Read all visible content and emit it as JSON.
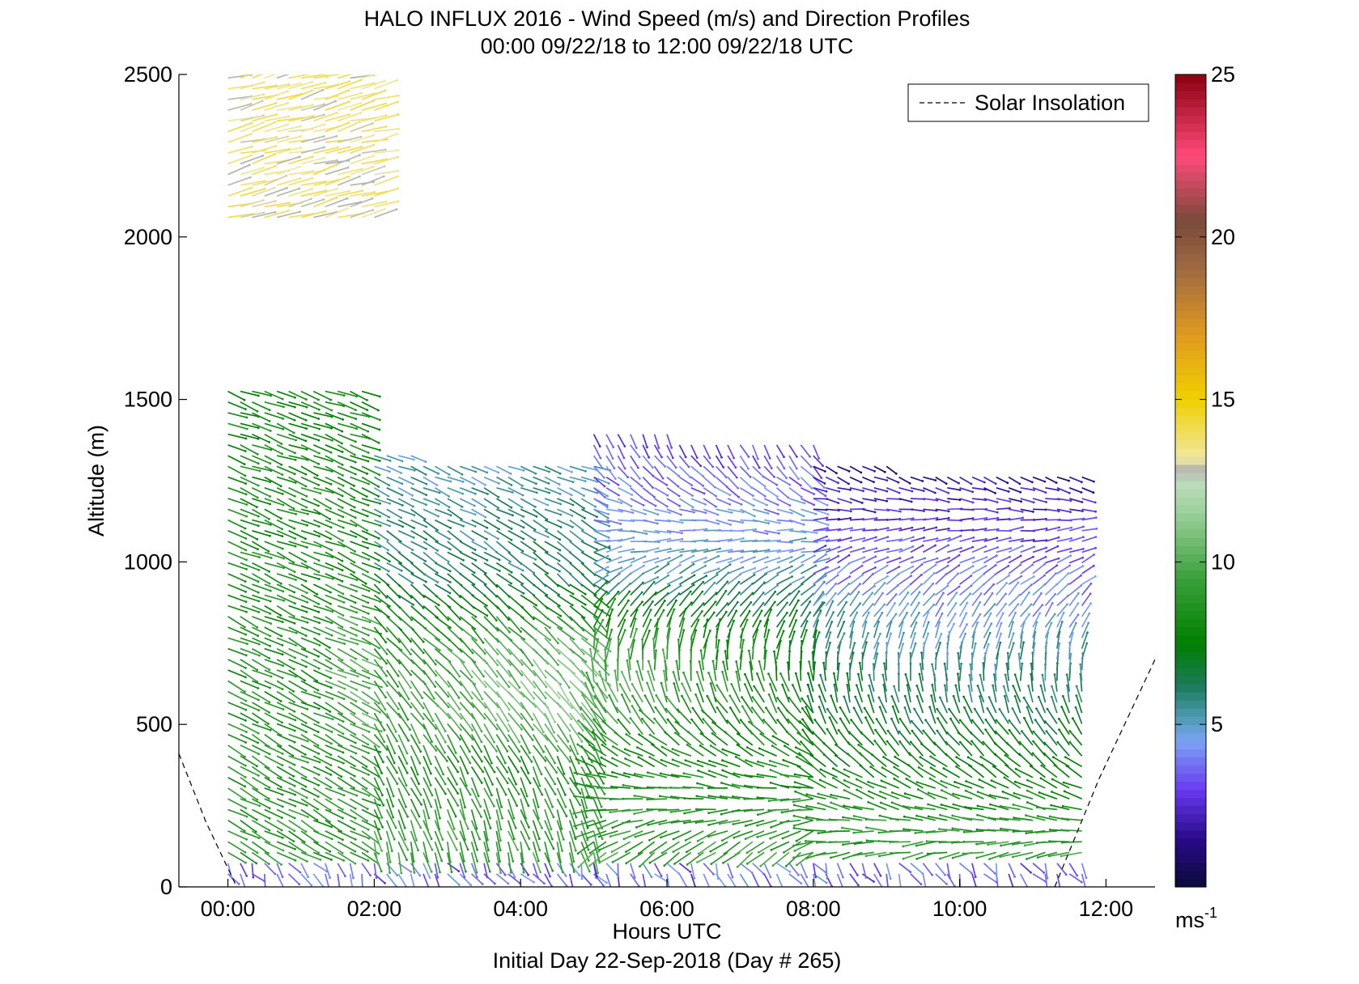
{
  "chart_data": {
    "type": "wind-barb-profile",
    "title": "HALO INFLUX 2016 - Wind Speed (m/s) and Direction Profiles",
    "subtitle": "00:00 09/22/18 to 12:00 09/22/18  UTC",
    "xlabel": "Hours UTC",
    "xlabel2": "Initial Day 22-Sep-2018 (Day # 265)",
    "ylabel": "Altitude (m)",
    "xlim": [
      -0.67,
      12.67
    ],
    "ylim": [
      0,
      2500
    ],
    "x_ticks": [
      0,
      2,
      4,
      6,
      8,
      10,
      12
    ],
    "x_tick_labels": [
      "00:00",
      "02:00",
      "04:00",
      "06:00",
      "08:00",
      "10:00",
      "12:00"
    ],
    "y_ticks": [
      0,
      500,
      1000,
      1500,
      2000,
      2500
    ],
    "y_tick_labels": [
      "0",
      "500",
      "1000",
      "1500",
      "2000",
      "2500"
    ],
    "legend": {
      "label": "Solar Insolation",
      "style": "dashed",
      "color": "#000000",
      "placement": "top-right"
    },
    "colorbar": {
      "range": [
        0,
        25
      ],
      "ticks": [
        5,
        10,
        15,
        20,
        25
      ],
      "tick_labels": [
        "5",
        "10",
        "15",
        "20",
        "25"
      ],
      "unit_base": "ms",
      "unit_exp": "-1",
      "stops": [
        {
          "v": 0,
          "c": "#0a0a3a"
        },
        {
          "v": 1.5,
          "c": "#2a0a8a"
        },
        {
          "v": 3,
          "c": "#6a3af0"
        },
        {
          "v": 4.5,
          "c": "#7aa4f4"
        },
        {
          "v": 5.3,
          "c": "#4a9aaa"
        },
        {
          "v": 6.2,
          "c": "#1a7a5a"
        },
        {
          "v": 7.5,
          "c": "#008000"
        },
        {
          "v": 9.5,
          "c": "#3aa03a"
        },
        {
          "v": 11.5,
          "c": "#9ad09a"
        },
        {
          "v": 12.5,
          "c": "#c0dcc0"
        },
        {
          "v": 12.8,
          "c": "#b0b0b0"
        },
        {
          "v": 13.2,
          "c": "#f0e8a0"
        },
        {
          "v": 15,
          "c": "#f0d000"
        },
        {
          "v": 17,
          "c": "#e09a20"
        },
        {
          "v": 19,
          "c": "#a06a40"
        },
        {
          "v": 20.5,
          "c": "#7a4a3a"
        },
        {
          "v": 22.5,
          "c": "#ff4a7a"
        },
        {
          "v": 25,
          "c": "#8a0010"
        }
      ]
    },
    "solar_insolation": {
      "morning": [
        [
          -0.67,
          410
        ],
        [
          -0.3,
          200
        ],
        [
          0.12,
          0
        ]
      ],
      "evening": [
        [
          11.3,
          0
        ],
        [
          11.9,
          330
        ],
        [
          12.67,
          700
        ]
      ]
    },
    "profile_times": [
      0,
      0.17,
      0.33,
      0.5,
      0.67,
      0.83,
      1.0,
      1.17,
      1.33,
      1.5,
      1.67,
      1.83,
      2.0,
      2.17,
      2.33,
      2.5,
      2.67,
      2.83,
      3.0,
      3.17,
      3.33,
      3.5,
      3.67,
      3.83,
      4.0,
      4.17,
      4.33,
      4.5,
      4.67,
      4.83,
      5.0,
      5.17,
      5.33,
      5.5,
      5.67,
      5.83,
      6.0,
      6.17,
      6.33,
      6.5,
      6.67,
      6.83,
      7.0,
      7.17,
      7.33,
      7.5,
      7.67,
      7.83,
      8.0,
      8.17,
      8.33,
      8.5,
      8.67,
      8.83,
      9.0,
      9.17,
      9.33,
      9.5,
      9.67,
      9.83,
      10.0,
      10.17,
      10.33,
      10.5,
      10.67,
      10.83,
      11.0,
      11.17,
      11.33,
      11.5,
      11.67
    ],
    "segments": [
      {
        "t0": 0,
        "t1": 1.9,
        "z0": 0,
        "z1": 1550,
        "spd_low": 9,
        "spd_high": 8,
        "dir_low": 300,
        "dir_high": 290
      },
      {
        "t0": 2.0,
        "t1": 5.0,
        "z0": 0,
        "z1": 1330,
        "spd_low": 10,
        "spd_high": 5,
        "dir_low": 350,
        "dir_high": 290
      },
      {
        "t0": 5.0,
        "t1": 8.0,
        "z0": 0,
        "z1": 1400,
        "spd_low": 10,
        "spd_high": 3,
        "dir_low": 30,
        "dir_high": 340
      },
      {
        "t0": 8.0,
        "t1": 11.8,
        "z0": 0,
        "z1": 1300,
        "spd_low": 10,
        "spd_high": 1.5,
        "dir_low": 60,
        "dir_high": 300
      },
      {
        "t0": 0,
        "t1": 2.0,
        "z0": 2060,
        "z1": 2500,
        "spd_low": 13.5,
        "spd_high": 13.5,
        "dir_low": 255,
        "dir_high": 255
      }
    ]
  }
}
